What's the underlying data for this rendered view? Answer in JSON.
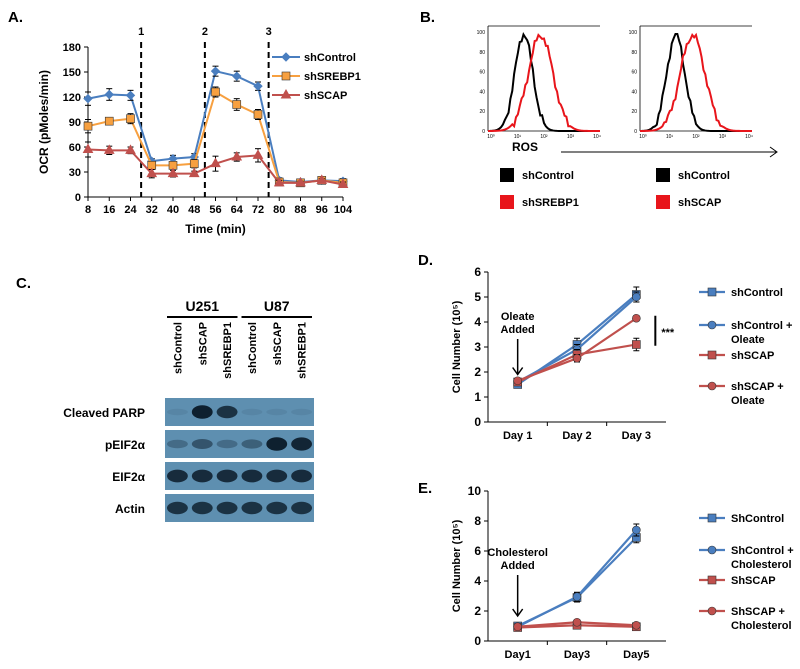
{
  "panels": {
    "A": {
      "label": "A."
    },
    "B": {
      "label": "B."
    },
    "C": {
      "label": "C."
    },
    "D": {
      "label": "D."
    },
    "E": {
      "label": "E."
    }
  },
  "colors": {
    "blue": "#4a7ebf",
    "orange": "#f7a040",
    "red": "#c0504d",
    "ros_black": "#000000",
    "ros_red": "#e8151b",
    "blot_bg": "#5e8fb0"
  },
  "chart_data": [
    {
      "id": "A",
      "type": "line",
      "xlabel": "Time (min)",
      "ylabel": "OCR (pMoles/min)",
      "ylim": [
        0,
        180
      ],
      "yticks": [
        0,
        30,
        60,
        90,
        120,
        150,
        180
      ],
      "x": [
        8,
        16,
        24,
        32,
        40,
        48,
        56,
        64,
        72,
        80,
        88,
        96,
        104
      ],
      "injections": [
        {
          "label": "1",
          "x": 28
        },
        {
          "label": "2",
          "x": 52
        },
        {
          "label": "3",
          "x": 76
        }
      ],
      "series": [
        {
          "name": "shControl",
          "color": "#4a7ebf",
          "marker": "diamond",
          "values": [
            118,
            123,
            122,
            43,
            46,
            48,
            151,
            145,
            133,
            20,
            18,
            20,
            19
          ],
          "errors": [
            8,
            7,
            6,
            3,
            4,
            4,
            6,
            6,
            5,
            3,
            3,
            3,
            3
          ]
        },
        {
          "name": "shSREBP1",
          "color": "#f7a040",
          "marker": "square",
          "values": [
            85,
            91,
            94,
            38,
            38,
            40,
            126,
            111,
            99,
            18,
            17,
            20,
            17
          ],
          "errors": [
            8,
            4,
            6,
            3,
            3,
            5,
            6,
            7,
            6,
            3,
            3,
            3,
            3
          ]
        },
        {
          "name": "shSCAP",
          "color": "#c0504d",
          "marker": "triangle",
          "values": [
            57,
            56,
            56,
            28,
            28,
            28,
            40,
            48,
            50,
            17,
            17,
            20,
            15
          ],
          "errors": [
            9,
            5,
            4,
            5,
            4,
            3,
            9,
            5,
            8,
            3,
            2,
            2,
            3
          ]
        }
      ]
    },
    {
      "id": "B",
      "type": "histogram",
      "xlabel": "ROS",
      "tick_labels_y": [
        "100",
        "80",
        "60",
        "40",
        "20",
        "0"
      ],
      "tick_labels_x": [
        "10⁰",
        "10¹",
        "10²",
        "10³",
        "10⁴"
      ],
      "plots": [
        {
          "legend": [
            {
              "name": "shControl",
              "color": "#000000"
            },
            {
              "name": "shSREBP1",
              "color": "#e8151b"
            }
          ]
        },
        {
          "legend": [
            {
              "name": "shControl",
              "color": "#000000"
            },
            {
              "name": "shSCAP",
              "color": "#e8151b"
            }
          ]
        }
      ]
    },
    {
      "id": "C",
      "type": "blot",
      "groups": [
        {
          "name": "U251",
          "lanes": [
            "shControl",
            "shSCAP",
            "shSREBP1"
          ]
        },
        {
          "name": "U87",
          "lanes": [
            "shControl",
            "shSCAP",
            "shSREBP1"
          ]
        }
      ],
      "rows": [
        {
          "label": "Cleaved PARP",
          "intensity": [
            0.05,
            0.95,
            0.8,
            0.05,
            0.05,
            0.05
          ]
        },
        {
          "label": "pEIF2α",
          "intensity": [
            0.3,
            0.5,
            0.3,
            0.4,
            0.95,
            0.9
          ]
        },
        {
          "label": "EIF2α",
          "intensity": [
            0.85,
            0.85,
            0.85,
            0.85,
            0.85,
            0.85
          ]
        },
        {
          "label": "Actin",
          "intensity": [
            0.8,
            0.8,
            0.8,
            0.8,
            0.8,
            0.8
          ]
        }
      ]
    },
    {
      "id": "D",
      "type": "line",
      "categories": [
        "Day 1",
        "Day 2",
        "Day 3"
      ],
      "ylabel": "Cell Number (10⁵)",
      "ylim": [
        0,
        6
      ],
      "yticks": [
        0,
        1,
        2,
        3,
        4,
        5,
        6
      ],
      "annotation": "Oleate\nAdded",
      "significance": "***",
      "series": [
        {
          "name": "shControl",
          "color": "#4a7ebf",
          "marker": "square",
          "values": [
            1.5,
            3.1,
            5.1
          ],
          "errors": [
            0.1,
            0.25,
            0.3
          ]
        },
        {
          "name": "shControl + Oleate",
          "color": "#4a7ebf",
          "marker": "circle",
          "values": [
            1.6,
            2.9,
            5.0
          ],
          "errors": [
            0.1,
            0.2,
            0.2
          ]
        },
        {
          "name": "shSCAP",
          "color": "#c0504d",
          "marker": "square",
          "values": [
            1.6,
            2.7,
            3.1
          ],
          "errors": [
            0.1,
            0.2,
            0.25
          ]
        },
        {
          "name": "shSCAP + Oleate",
          "color": "#c0504d",
          "marker": "circle",
          "values": [
            1.65,
            2.55,
            4.15
          ],
          "errors": [
            0.1,
            0.15,
            0.1
          ]
        }
      ]
    },
    {
      "id": "E",
      "type": "line",
      "categories": [
        "Day1",
        "Day3",
        "Day5"
      ],
      "ylabel": "Cell Number (10⁵)",
      "ylim": [
        0,
        10
      ],
      "yticks": [
        0,
        2,
        4,
        6,
        8,
        10
      ],
      "annotation": "Cholesterol\nAdded",
      "series": [
        {
          "name": "ShControl",
          "color": "#4a7ebf",
          "marker": "square",
          "values": [
            1.0,
            2.9,
            6.9
          ],
          "errors": [
            0.1,
            0.3,
            0.35
          ]
        },
        {
          "name": "ShControl + Cholesterol",
          "color": "#4a7ebf",
          "marker": "circle",
          "values": [
            0.95,
            2.95,
            7.4
          ],
          "errors": [
            0.1,
            0.3,
            0.4
          ]
        },
        {
          "name": "ShSCAP",
          "color": "#c0504d",
          "marker": "square",
          "values": [
            0.9,
            1.05,
            0.95
          ],
          "errors": [
            0.1,
            0.1,
            0.1
          ]
        },
        {
          "name": "ShSCAP + Cholesterol",
          "color": "#c0504d",
          "marker": "circle",
          "values": [
            0.95,
            1.25,
            1.05
          ],
          "errors": [
            0.1,
            0.1,
            0.1
          ]
        }
      ]
    }
  ]
}
